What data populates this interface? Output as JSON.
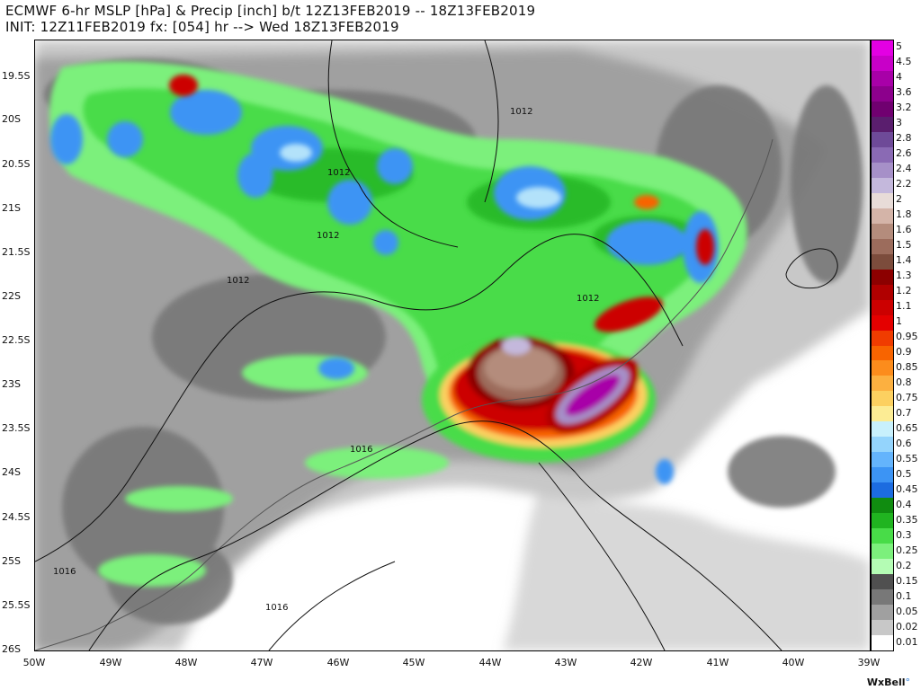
{
  "header": {
    "line1": "ECMWF 6-hr MSLP [hPa] & Precip [inch] b/t 12Z13FEB2019 -- 18Z13FEB2019",
    "line2": "INIT: 12Z11FEB2019 fx: [054] hr --> Wed 18Z13FEB2019"
  },
  "lat_labels": [
    "19.5S",
    "20S",
    "20.5S",
    "21S",
    "21.5S",
    "22S",
    "22.5S",
    "23S",
    "23.5S",
    "24S",
    "24.5S",
    "25S",
    "25.5S",
    "26S"
  ],
  "lon_labels": [
    "50W",
    "49W",
    "48W",
    "47W",
    "46W",
    "45W",
    "44W",
    "43W",
    "42W",
    "41W",
    "40W",
    "39W"
  ],
  "isobar_labels": [
    "1012",
    "1012",
    "1012",
    "1012",
    "1012",
    "1016",
    "1016",
    "1016"
  ],
  "colorbar": {
    "labels": [
      "5",
      "4.5",
      "4",
      "3.6",
      "3.2",
      "3",
      "2.8",
      "2.6",
      "2.4",
      "2.2",
      "2",
      "1.8",
      "1.6",
      "1.5",
      "1.4",
      "1.3",
      "1.2",
      "1.1",
      "1",
      "0.95",
      "0.9",
      "0.85",
      "0.8",
      "0.75",
      "0.7",
      "0.65",
      "0.6",
      "0.55",
      "0.5",
      "0.45",
      "0.4",
      "0.35",
      "0.3",
      "0.25",
      "0.2",
      "0.15",
      "0.1",
      "0.05",
      "0.02",
      "0.01"
    ],
    "colors": [
      "#e300e3",
      "#c800c8",
      "#a800a8",
      "#8c008c",
      "#700070",
      "#5a1e6e",
      "#6e4a98",
      "#8a6ab4",
      "#a690c8",
      "#c4b8dc",
      "#e8dcd8",
      "#d4b4a8",
      "#b48c7c",
      "#9c6c5c",
      "#7c4c3c",
      "#8c0000",
      "#b00000",
      "#cc0000",
      "#e40000",
      "#f03c00",
      "#f86400",
      "#fc8c1c",
      "#fcb040",
      "#fcd060",
      "#fcec94",
      "#c8f0fc",
      "#94d4fc",
      "#64b4fc",
      "#3c94f4",
      "#1c6ce0",
      "#108c10",
      "#20b420",
      "#48dc48",
      "#7cf07c",
      "#b4fcb4",
      "#505050",
      "#787878",
      "#a0a0a0",
      "#c8c8c8",
      "#ffffff"
    ]
  },
  "brand": {
    "name": "WxBell",
    "mark": "°"
  }
}
